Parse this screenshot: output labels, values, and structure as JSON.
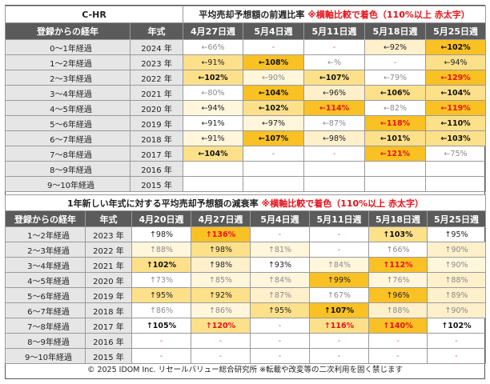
{
  "page": {
    "code_title": "C-HR"
  },
  "chart_data": [
    {
      "type": "table",
      "title": "平均売却予想額の前週比率",
      "note": "※横軸比較で着色（110%以上 赤太字）",
      "row_header": "登録からの経年",
      "year_header": "年式",
      "columns": [
        "4月27日週",
        "5月4日週",
        "5月11日週",
        "5月18日週",
        "5月25日週"
      ],
      "rows": [
        {
          "label": "0～1年経過",
          "year": "2024 年",
          "cells": [
            {
              "text": "←66%",
              "level": "faint"
            },
            {
              "text": "-",
              "level": "dash"
            },
            {
              "text": "-",
              "level": "dash"
            },
            {
              "text": "←92%",
              "level": "normal",
              "bg": "#fff0cc"
            },
            {
              "text": "←102%",
              "level": "strong",
              "bg": "#f9c123"
            }
          ]
        },
        {
          "label": "1～2年経過",
          "year": "2023 年",
          "cells": [
            {
              "text": "←91%",
              "level": "normal",
              "bg": "#fde08a"
            },
            {
              "text": "←108%",
              "level": "strong",
              "bg": "#f9c123"
            },
            {
              "text": "←%",
              "level": "faint"
            },
            {
              "text": "-",
              "level": "dash"
            },
            {
              "text": "←94%",
              "level": "normal",
              "bg": "#fde08a"
            }
          ]
        },
        {
          "label": "2～3年経過",
          "year": "2022 年",
          "cells": [
            {
              "text": "←102%",
              "level": "strong",
              "bg": "#fde08a"
            },
            {
              "text": "←90%",
              "level": "faint",
              "bg": "#fff6dc"
            },
            {
              "text": "←107%",
              "level": "strong",
              "bg": "#fde08a"
            },
            {
              "text": "←79%",
              "level": "faint"
            },
            {
              "text": "←129%",
              "level": "red",
              "bg": "#f9c123"
            }
          ]
        },
        {
          "label": "3～4年経過",
          "year": "2021 年",
          "cells": [
            {
              "text": "←80%",
              "level": "faint"
            },
            {
              "text": "←104%",
              "level": "strong",
              "bg": "#f9c123"
            },
            {
              "text": "←96%",
              "level": "normal",
              "bg": "#fff0cc"
            },
            {
              "text": "←106%",
              "level": "strong",
              "bg": "#fde08a"
            },
            {
              "text": "←104%",
              "level": "strong",
              "bg": "#fde08a"
            }
          ]
        },
        {
          "label": "4～5年経過",
          "year": "2020 年",
          "cells": [
            {
              "text": "←94%",
              "level": "normal",
              "bg": "#fff6dc"
            },
            {
              "text": "←102%",
              "level": "strong",
              "bg": "#fde08a"
            },
            {
              "text": "←114%",
              "level": "red",
              "bg": "#f9c123"
            },
            {
              "text": "←82%",
              "level": "faint"
            },
            {
              "text": "←119%",
              "level": "red",
              "bg": "#f9c123"
            }
          ]
        },
        {
          "label": "5～6年経過",
          "year": "2019 年",
          "cells": [
            {
              "text": "←91%",
              "level": "normal"
            },
            {
              "text": "←97%",
              "level": "normal",
              "bg": "#fff6dc"
            },
            {
              "text": "←87%",
              "level": "faint"
            },
            {
              "text": "←118%",
              "level": "red",
              "bg": "#f9c123"
            },
            {
              "text": "←110%",
              "level": "strong",
              "bg": "#fde08a"
            }
          ]
        },
        {
          "label": "6～7年経過",
          "year": "2018 年",
          "cells": [
            {
              "text": "←91%",
              "level": "normal",
              "bg": "#fff6dc"
            },
            {
              "text": "←107%",
              "level": "strong",
              "bg": "#f9c123"
            },
            {
              "text": "←98%",
              "level": "normal",
              "bg": "#fff0cc"
            },
            {
              "text": "←101%",
              "level": "strong",
              "bg": "#fde08a"
            },
            {
              "text": "←103%",
              "level": "strong",
              "bg": "#fde08a"
            }
          ]
        },
        {
          "label": "7～8年経過",
          "year": "2017 年",
          "cells": [
            {
              "text": "←104%",
              "level": "strong",
              "bg": "#fde08a"
            },
            {
              "text": "-",
              "level": "dash"
            },
            {
              "text": "-",
              "level": "dash"
            },
            {
              "text": "←121%",
              "level": "red",
              "bg": "#f9c123"
            },
            {
              "text": "←75%",
              "level": "faint"
            }
          ]
        },
        {
          "label": "8～9年経過",
          "year": "2016 年",
          "cells": [
            {
              "text": "",
              "level": "normal"
            },
            {
              "text": "",
              "level": "normal"
            },
            {
              "text": "",
              "level": "normal"
            },
            {
              "text": "",
              "level": "normal"
            },
            {
              "text": "",
              "level": "normal"
            }
          ]
        },
        {
          "label": "9～10年経過",
          "year": "2015 年",
          "cells": [
            {
              "text": "",
              "level": "normal"
            },
            {
              "text": "",
              "level": "normal"
            },
            {
              "text": "",
              "level": "normal"
            },
            {
              "text": "",
              "level": "normal"
            },
            {
              "text": "",
              "level": "normal"
            }
          ]
        }
      ]
    },
    {
      "type": "table",
      "title": "1年新しい年式に対する平均売却予想額の減衰率",
      "note": "※横軸比較で着色（110%以上 赤太字）",
      "row_header": "登録からの経年",
      "year_header": "年式",
      "columns": [
        "4月20日週",
        "4月27日週",
        "5月4日週",
        "5月11日週",
        "5月18日週",
        "5月25日週"
      ],
      "rows": [
        {
          "label": "1～2年経過",
          "year": "2023 年",
          "cells": [
            {
              "text": "↑98%",
              "level": "normal"
            },
            {
              "text": "↑136%",
              "level": "red",
              "bg": "#f9c123"
            },
            {
              "text": "-",
              "level": "dash"
            },
            {
              "text": "-",
              "level": "dash"
            },
            {
              "text": "↑103%",
              "level": "strong",
              "bg": "#fde08a"
            },
            {
              "text": "↑95%",
              "level": "normal"
            }
          ]
        },
        {
          "label": "2～3年経過",
          "year": "2022 年",
          "cells": [
            {
              "text": "↑88%",
              "level": "faint",
              "bg": "#fff6dc"
            },
            {
              "text": "↑98%",
              "level": "normal",
              "bg": "#fde08a"
            },
            {
              "text": "↑81%",
              "level": "faint",
              "bg": "#fff6dc"
            },
            {
              "text": "-",
              "level": "dash"
            },
            {
              "text": "↑66%",
              "level": "faint"
            },
            {
              "text": "↑90%",
              "level": "faint",
              "bg": "#fff0cc"
            }
          ]
        },
        {
          "label": "3～4年経過",
          "year": "2021 年",
          "cells": [
            {
              "text": "↑102%",
              "level": "strong",
              "bg": "#fde08a"
            },
            {
              "text": "↑98%",
              "level": "normal",
              "bg": "#fff0cc"
            },
            {
              "text": "↑93%",
              "level": "normal"
            },
            {
              "text": "↑84%",
              "level": "faint",
              "bg": "#fff6dc"
            },
            {
              "text": "↑112%",
              "level": "red",
              "bg": "#f9c123"
            },
            {
              "text": "↑90%",
              "level": "faint",
              "bg": "#fff6dc"
            }
          ]
        },
        {
          "label": "4～5年経過",
          "year": "2020 年",
          "cells": [
            {
              "text": "↑73%",
              "level": "faint"
            },
            {
              "text": "↑85%",
              "level": "faint",
              "bg": "#fff6dc"
            },
            {
              "text": "↑84%",
              "level": "faint",
              "bg": "#fff6dc"
            },
            {
              "text": "↑99%",
              "level": "normal",
              "bg": "#f9c123"
            },
            {
              "text": "↑76%",
              "level": "faint",
              "bg": "#fff6dc"
            },
            {
              "text": "↑88%",
              "level": "faint",
              "bg": "#fff0cc"
            }
          ]
        },
        {
          "label": "5～6年経過",
          "year": "2019 年",
          "cells": [
            {
              "text": "↑95%",
              "level": "normal",
              "bg": "#fde08a"
            },
            {
              "text": "↑92%",
              "level": "normal",
              "bg": "#fde08a"
            },
            {
              "text": "↑87%",
              "level": "faint",
              "bg": "#fff0cc"
            },
            {
              "text": "↑67%",
              "level": "faint"
            },
            {
              "text": "↑96%",
              "level": "normal",
              "bg": "#f9c123"
            },
            {
              "text": "↑89%",
              "level": "faint",
              "bg": "#fff0cc"
            }
          ]
        },
        {
          "label": "6～7年経過",
          "year": "2018 年",
          "cells": [
            {
              "text": "↑86%",
              "level": "faint"
            },
            {
              "text": "↑86%",
              "level": "faint",
              "bg": "#fff6dc"
            },
            {
              "text": "↑95%",
              "level": "normal",
              "bg": "#fde08a"
            },
            {
              "text": "↑107%",
              "level": "strong",
              "bg": "#f9c123"
            },
            {
              "text": "↑88%",
              "level": "faint",
              "bg": "#fff0cc"
            },
            {
              "text": "↑90%",
              "level": "faint",
              "bg": "#fff0cc"
            }
          ]
        },
        {
          "label": "7～8年経過",
          "year": "2017 年",
          "cells": [
            {
              "text": "↑105%",
              "level": "strong"
            },
            {
              "text": "↑120%",
              "level": "red",
              "bg": "#fde08a"
            },
            {
              "text": "-",
              "level": "dash"
            },
            {
              "text": "↑116%",
              "level": "red",
              "bg": "#fde08a"
            },
            {
              "text": "↑140%",
              "level": "red",
              "bg": "#f9c123"
            },
            {
              "text": "↑102%",
              "level": "strong"
            }
          ]
        },
        {
          "label": "8～9年経過",
          "year": "2016 年",
          "cells": [
            {
              "text": "-",
              "level": "dash"
            },
            {
              "text": "-",
              "level": "dash"
            },
            {
              "text": "-",
              "level": "dash"
            },
            {
              "text": "-",
              "level": "dash"
            },
            {
              "text": "-",
              "level": "dash"
            },
            {
              "text": "-",
              "level": "dash"
            }
          ]
        },
        {
          "label": "9～10年経過",
          "year": "2015 年",
          "cells": [
            {
              "text": "-",
              "level": "dash"
            },
            {
              "text": "-",
              "level": "dash"
            },
            {
              "text": "-",
              "level": "dash"
            },
            {
              "text": "-",
              "level": "dash"
            },
            {
              "text": "-",
              "level": "dash"
            },
            {
              "text": "-",
              "level": "dash"
            }
          ]
        }
      ]
    }
  ],
  "footer": {
    "text": "© 2025 IDOM Inc. リセールバリュー総合研究所 ※転載や改変等の二次利用を固く禁じます"
  }
}
